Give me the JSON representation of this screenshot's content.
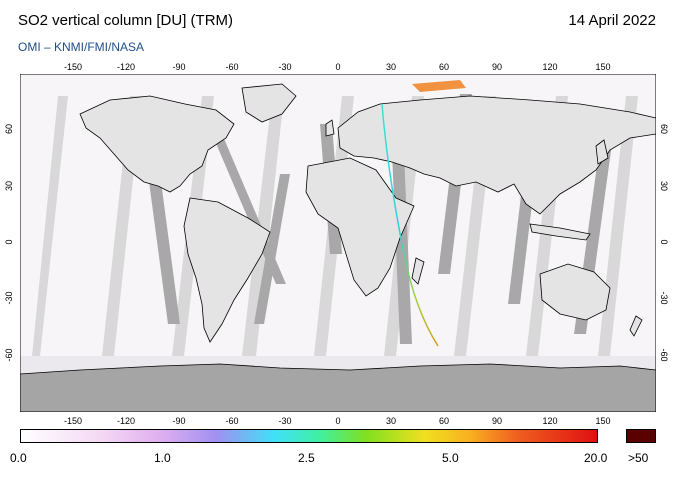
{
  "header": {
    "title": "SO2 vertical column [DU] (TRM)",
    "date": "14 April 2022",
    "credit": "OMI  –  KNMI/FMI/NASA"
  },
  "map": {
    "lon_ticks": [
      "-150",
      "-120",
      "-90",
      "-60",
      "-30",
      "0",
      "30",
      "60",
      "90",
      "120",
      "150"
    ],
    "lat_ticks": [
      "60",
      "30",
      "0",
      "-30",
      "-60"
    ],
    "colors": {
      "background": "#d8d8d8",
      "swath_gap": "#a8a8a8",
      "antarctica": "#a5a5a5",
      "coast": "#000000",
      "plume": "#d4a020"
    }
  },
  "colorbar": {
    "labels": [
      "0.0",
      "1.0",
      "2.5",
      "5.0",
      "20.0",
      ">50"
    ],
    "overflow_color": "#5a0000"
  }
}
